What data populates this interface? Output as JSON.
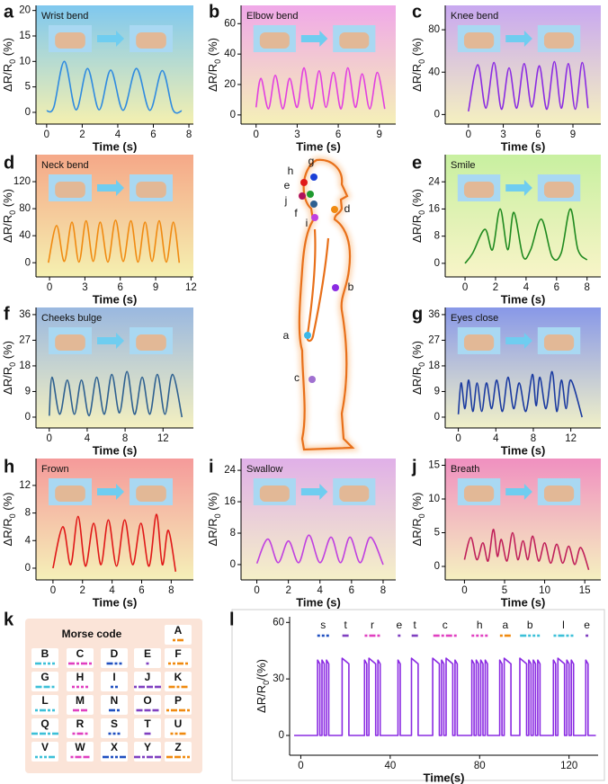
{
  "chart_data": [
    {
      "panel": "a",
      "type": "line",
      "title": "Wrist bend",
      "x_label": "Time (s)",
      "y_label": [
        "ΔR/R",
        "0",
        " (%)"
      ],
      "color": "#2f8be0",
      "background": [
        "#7fc8ef",
        "#f4f0b0"
      ],
      "xlim": [
        -0.6,
        8.25
      ],
      "ylim": [
        -2.3,
        21
      ],
      "xticks": [
        0,
        2,
        4,
        6,
        8
      ],
      "yticks": [
        0,
        5,
        10,
        15,
        20
      ],
      "x": [
        0,
        0.4,
        1.0,
        1.65,
        2.3,
        2.95,
        3.6,
        4.3,
        5.05,
        5.8,
        6.5,
        7.1,
        7.6
      ],
      "values": [
        0.3,
        1,
        10,
        0.5,
        8.6,
        0.5,
        8.3,
        0.4,
        8.6,
        0.4,
        8.2,
        0.5,
        0.3
      ]
    },
    {
      "panel": "b",
      "type": "line",
      "title": "Elbow bend",
      "x_label": "Time (s)",
      "y_label": [
        "ΔR/R",
        "0",
        " (%)"
      ],
      "color": "#e23fe0",
      "background": [
        "#f0a8e8",
        "#f5f0b8"
      ],
      "xlim": [
        -1.1,
        10.2
      ],
      "ylim": [
        -6,
        72
      ],
      "xticks": [
        0,
        3,
        6,
        9
      ],
      "yticks": [
        0,
        20,
        40,
        60
      ],
      "x": [
        0,
        0.35,
        0.9,
        1.4,
        1.95,
        2.45,
        3.0,
        3.5,
        4.05,
        4.6,
        5.1,
        5.65,
        6.2,
        6.7,
        7.25,
        7.75,
        8.3,
        8.85,
        9.4
      ],
      "values": [
        5,
        24,
        4,
        26,
        4,
        24,
        5,
        31,
        4,
        29,
        5,
        28,
        4,
        31,
        5,
        27,
        4,
        28,
        4
      ]
    },
    {
      "panel": "c",
      "type": "line",
      "title": "Knee bend",
      "x_label": "Time (s)",
      "y_label": [
        "ΔR/R",
        "0",
        " (%)"
      ],
      "color": "#8a2be2",
      "background": [
        "#c8a8f0",
        "#f5f0c0"
      ],
      "xlim": [
        -2,
        11.4
      ],
      "ylim": [
        -9,
        103
      ],
      "xticks": [
        0,
        3,
        6,
        9
      ],
      "yticks": [
        0,
        40,
        80
      ],
      "x": [
        0,
        0.8,
        1.5,
        2.2,
        2.85,
        3.5,
        4.15,
        4.8,
        5.45,
        6.1,
        6.75,
        7.4,
        8.0,
        8.6,
        9.2,
        9.8,
        10.3
      ],
      "values": [
        3,
        47,
        6,
        49,
        5,
        44,
        6,
        48,
        7,
        46,
        5,
        50,
        6,
        48,
        5,
        49,
        6
      ]
    },
    {
      "panel": "d",
      "type": "line",
      "title": "Neck bend",
      "x_label": "Time (s)",
      "y_label": [
        "ΔR/R",
        "0",
        " (%)"
      ],
      "color": "#f08a10",
      "background": [
        "#f5a888",
        "#f5f0b0"
      ],
      "xlim": [
        -1.15,
        12.2
      ],
      "ylim": [
        -21,
        160
      ],
      "xticks": [
        0,
        3,
        6,
        9,
        12
      ],
      "yticks": [
        0,
        40,
        80,
        120
      ],
      "x": [
        -0.1,
        0.6,
        1.25,
        1.9,
        2.5,
        3.1,
        3.7,
        4.3,
        4.95,
        5.6,
        6.25,
        6.9,
        7.5,
        8.1,
        8.7,
        9.3,
        9.9,
        10.5,
        11.0
      ],
      "values": [
        0,
        55,
        2,
        60,
        1,
        62,
        2,
        60,
        1,
        63,
        2,
        62,
        1,
        60,
        2,
        62,
        1,
        60,
        0
      ]
    },
    {
      "panel": "e",
      "type": "line",
      "title": "Smile",
      "x_label": "Time (s)",
      "y_label": [
        "ΔR/R",
        "0",
        " (%)"
      ],
      "color": "#1f8a1f",
      "background": [
        "#c8f0a0",
        "#f8f4c8"
      ],
      "xlim": [
        -1.3,
        8.9
      ],
      "ylim": [
        -4,
        32
      ],
      "xticks": [
        0,
        2,
        4,
        6,
        8
      ],
      "yticks": [
        0,
        8,
        16,
        24
      ],
      "x": [
        0,
        0.5,
        1.3,
        1.8,
        2.3,
        2.8,
        3.2,
        3.8,
        4.3,
        5.0,
        5.7,
        6.3,
        6.9,
        7.4,
        8.0
      ],
      "values": [
        0,
        3,
        10,
        4,
        16,
        4,
        15,
        2,
        4,
        13,
        2,
        3,
        16,
        4,
        1
      ]
    },
    {
      "panel": "f",
      "type": "line",
      "title": "Cheeks bulge",
      "x_label": "Time (s)",
      "y_label": [
        "ΔR/R",
        "0",
        " (%)"
      ],
      "color": "#2e6090",
      "background": [
        "#9ab8e0",
        "#f4f0c0"
      ],
      "xlim": [
        -1.4,
        15.2
      ],
      "ylim": [
        -3.8,
        38.5
      ],
      "xticks": [
        0,
        4,
        8,
        12
      ],
      "yticks": [
        0,
        9,
        18,
        27,
        36
      ],
      "x": [
        0,
        0.3,
        1.1,
        1.9,
        2.65,
        3.4,
        4.2,
        5.0,
        5.8,
        6.6,
        7.4,
        8.2,
        9.0,
        9.8,
        10.6,
        11.4,
        12.2,
        13.0,
        14.0
      ],
      "values": [
        0.5,
        14,
        1,
        13,
        1,
        13,
        0.5,
        14,
        1,
        15,
        1.5,
        16,
        1,
        14,
        1,
        15,
        1,
        15,
        0
      ]
    },
    {
      "panel": "g",
      "type": "line",
      "title": "Eyes close",
      "x_label": "Time (s)",
      "y_label": [
        "ΔR/R",
        "0",
        " (%)"
      ],
      "color": "#1a3aa0",
      "background": [
        "#8898e8",
        "#f0f0c8"
      ],
      "xlim": [
        -1.4,
        15.2
      ],
      "ylim": [
        -3.8,
        38.5
      ],
      "xticks": [
        0,
        4,
        8,
        12
      ],
      "yticks": [
        0,
        9,
        18,
        27,
        36
      ],
      "x": [
        0,
        0.3,
        0.7,
        1.1,
        1.55,
        2.0,
        2.5,
        3.0,
        3.55,
        4.1,
        4.7,
        5.3,
        5.9,
        6.5,
        7.2,
        7.9,
        8.3,
        8.7,
        9.35,
        10.0,
        10.5,
        11.0,
        11.5,
        12.0,
        13.2
      ],
      "values": [
        1,
        12,
        3,
        13,
        2,
        12,
        2,
        12,
        3,
        13,
        2,
        14,
        3,
        12,
        2,
        15,
        4,
        14,
        3,
        16,
        2,
        13,
        3,
        13,
        0
      ]
    },
    {
      "panel": "h",
      "type": "line",
      "title": "Frown",
      "x_label": "Time (s)",
      "y_label": [
        "ΔR/R",
        "0",
        " (%)"
      ],
      "color": "#e01818",
      "background": [
        "#f59a9a",
        "#f5f0b8"
      ],
      "xlim": [
        -1.15,
        9.5
      ],
      "ylim": [
        -1.7,
        15.9
      ],
      "xticks": [
        0,
        2,
        4,
        6,
        8
      ],
      "yticks": [
        0,
        4,
        8,
        12
      ],
      "x": [
        0,
        0.67,
        1.2,
        1.7,
        2.2,
        2.75,
        3.25,
        3.75,
        4.3,
        4.85,
        5.4,
        5.95,
        6.5,
        7.0,
        7.4,
        7.8,
        8.3
      ],
      "values": [
        0,
        6,
        0.5,
        7.5,
        0.3,
        6.5,
        0.5,
        7,
        0.3,
        7,
        0.5,
        6.5,
        0.3,
        7.8,
        0.5,
        5.5,
        -0.5
      ]
    },
    {
      "panel": "i",
      "type": "line",
      "title": "Swallow",
      "x_label": "Time (s)",
      "y_label": [
        "ΔR/R",
        "0",
        " (%)"
      ],
      "color": "#c040e0",
      "background": [
        "#e0b0e8",
        "#f5f0c8"
      ],
      "xlim": [
        -1,
        8.8
      ],
      "ylim": [
        -3.9,
        27
      ],
      "xticks": [
        0,
        2,
        4,
        6,
        8
      ],
      "yticks": [
        0,
        8,
        16,
        24
      ],
      "x": [
        0,
        0.7,
        1.35,
        2.0,
        2.65,
        3.3,
        4.0,
        4.7,
        5.3,
        5.9,
        6.55,
        7.2,
        8.0
      ],
      "values": [
        0.3,
        6.5,
        0.5,
        6,
        0.5,
        7.5,
        0.5,
        7,
        0.5,
        7,
        0.5,
        7,
        0
      ]
    },
    {
      "panel": "j",
      "type": "line",
      "title": "Breath",
      "x_label": "Time (s)",
      "y_label": [
        "ΔR/R",
        "0",
        " (%)"
      ],
      "color": "#c0205a",
      "background": [
        "#f090c0",
        "#f5f0c0"
      ],
      "xlim": [
        -2.4,
        17
      ],
      "ylim": [
        -2,
        16
      ],
      "xticks": [
        0,
        5,
        10,
        15
      ],
      "yticks": [
        0,
        5,
        10,
        15
      ],
      "x": [
        0,
        0.8,
        1.55,
        2.3,
        2.95,
        3.6,
        4.1,
        4.6,
        5.3,
        6.0,
        6.65,
        7.3,
        7.9,
        8.5,
        9.25,
        10.0,
        10.75,
        11.5,
        12.25,
        13.0,
        13.75,
        14.5,
        15.5
      ],
      "values": [
        1,
        4.3,
        1,
        3.5,
        0.8,
        5.5,
        1.5,
        4,
        0.8,
        5,
        1,
        3.8,
        1,
        4.5,
        0.8,
        3.5,
        0.5,
        3.3,
        0.5,
        3,
        0.3,
        2.8,
        -0.5
      ]
    },
    {
      "panel": "l",
      "type": "line",
      "x_label": "Time(s)",
      "y_label": [
        "ΔR/R",
        "0",
        "/(%)"
      ],
      "color": "#8a2be2",
      "xlim": [
        -5,
        133
      ],
      "ylim": [
        -10.5,
        63
      ],
      "xticks": [
        0,
        40,
        80,
        120
      ],
      "yticks": [
        0,
        30,
        60
      ],
      "letters": [
        {
          "label": "s",
          "code": "...",
          "color": "#2050c0",
          "x": 10
        },
        {
          "label": "t",
          "code": "-",
          "color": "#8040c0",
          "x": 20
        },
        {
          "label": "r",
          "code": ".-.",
          "color": "#e040c0",
          "x": 32
        },
        {
          "label": "e",
          "code": ".",
          "color": "#8040c0",
          "x": 44
        },
        {
          "label": "t",
          "code": "-",
          "color": "#8040c0",
          "x": 51
        },
        {
          "label": "c",
          "code": "-.-.",
          "color": "#e040c0",
          "x": 64.5
        },
        {
          "label": "h",
          "code": "....",
          "color": "#e040c0",
          "x": 80
        },
        {
          "label": "a",
          "code": ".-",
          "color": "#f08a10",
          "x": 91.5
        },
        {
          "label": "b",
          "code": "-...",
          "color": "#3cc0d8",
          "x": 102.5
        },
        {
          "label": "l",
          "code": ".-..",
          "color": "#3cc0d8",
          "x": 117.5
        },
        {
          "label": "e",
          "code": ".",
          "color": "#8040c0",
          "x": 128
        }
      ],
      "x": [
        -3,
        7.5,
        7.5,
        8.5,
        8.5,
        9.5,
        9.5,
        10.5,
        10.5,
        11.5,
        11.5,
        12.5,
        12.5,
        18.5,
        18.5,
        21.5,
        21.5,
        28.5,
        28.5,
        29.5,
        29.5,
        30.5,
        30.5,
        33.5,
        33.5,
        34.5,
        34.5,
        35.5,
        35.5,
        43.5,
        43.5,
        44.5,
        44.5,
        49.5,
        49.5,
        52.5,
        52.5,
        59,
        59,
        62,
        62,
        63,
        63,
        64,
        64,
        65,
        65,
        68,
        68,
        69,
        69,
        70,
        70,
        76.5,
        76.5,
        77.5,
        77.5,
        78.5,
        78.5,
        79.5,
        79.5,
        80.5,
        80.5,
        81.5,
        81.5,
        82.5,
        82.5,
        83.5,
        83.5,
        89,
        89,
        90,
        90,
        91,
        91,
        94,
        94,
        98,
        98,
        101,
        101,
        102,
        102,
        103,
        103,
        104,
        104,
        105,
        105,
        106,
        106,
        107,
        107,
        113,
        113,
        114,
        114,
        115,
        115,
        118,
        118,
        119,
        119,
        120,
        120,
        121,
        121,
        122,
        122,
        127.5,
        127.5,
        128.5,
        128.5,
        132
      ],
      "values": [
        0,
        0,
        40,
        38,
        0,
        0,
        40,
        38,
        0,
        0,
        40,
        38,
        0,
        0,
        41,
        38,
        0,
        0,
        40,
        38,
        0,
        0,
        41,
        38,
        0,
        0,
        40,
        38,
        0,
        0,
        40,
        38,
        0,
        0,
        41,
        38,
        0,
        0,
        41,
        38,
        0,
        0,
        40,
        38,
        0,
        0,
        41,
        38,
        0,
        0,
        40,
        38,
        0,
        0,
        40,
        38,
        0,
        0,
        40,
        38,
        0,
        0,
        40,
        38,
        0,
        0,
        40,
        38,
        0,
        0,
        40,
        38,
        0,
        0,
        41,
        38,
        0,
        0,
        41,
        38,
        0,
        0,
        40,
        38,
        0,
        0,
        40,
        38,
        0,
        0,
        40,
        38,
        0,
        0,
        40,
        38,
        0,
        0,
        41,
        38,
        0,
        0,
        40,
        38,
        0,
        0,
        40,
        38,
        0,
        0,
        40,
        38,
        0,
        0
      ]
    }
  ],
  "body_map": {
    "points": [
      {
        "label": "g",
        "color": "#1a3fd6"
      },
      {
        "label": "h",
        "color": "#e01818"
      },
      {
        "label": "e",
        "color": "#1f9a2f"
      },
      {
        "label": "j",
        "color": "#b0105a"
      },
      {
        "label": "f",
        "color": "#2e6090"
      },
      {
        "label": "i",
        "color": "#c040e0"
      },
      {
        "label": "d",
        "color": "#f08a10"
      },
      {
        "label": "b",
        "color": "#8a2be2"
      },
      {
        "label": "a",
        "color": "#3cb8e8"
      },
      {
        "label": "c",
        "color": "#a070d0"
      }
    ]
  },
  "morse_table": {
    "panel": "k",
    "title": "Morse code",
    "letters": [
      {
        "letter": "A",
        "code": ".-",
        "color": "#f08a10"
      },
      {
        "letter": "B",
        "code": "-...",
        "color": "#3cc0d8"
      },
      {
        "letter": "C",
        "code": "-.-.",
        "color": "#e040c0"
      },
      {
        "letter": "D",
        "code": "-..",
        "color": "#2050c0"
      },
      {
        "letter": "E",
        "code": ".",
        "color": "#8040c0"
      },
      {
        "letter": "F",
        "code": "..-.",
        "color": "#f08a10"
      },
      {
        "letter": "G",
        "code": "--.",
        "color": "#3cc0d8"
      },
      {
        "letter": "H",
        "code": "....",
        "color": "#e040c0"
      },
      {
        "letter": "I",
        "code": "..",
        "color": "#2050c0"
      },
      {
        "letter": "J",
        "code": ".---",
        "color": "#8040c0"
      },
      {
        "letter": "K",
        "code": "-.-",
        "color": "#f08a10"
      },
      {
        "letter": "L",
        "code": ".-..",
        "color": "#3cc0d8"
      },
      {
        "letter": "M",
        "code": "--",
        "color": "#e040c0"
      },
      {
        "letter": "N",
        "code": "-.",
        "color": "#2050c0"
      },
      {
        "letter": "O",
        "code": "---",
        "color": "#8040c0"
      },
      {
        "letter": "P",
        "code": ".--.",
        "color": "#f08a10"
      },
      {
        "letter": "Q",
        "code": "--.-",
        "color": "#3cc0d8"
      },
      {
        "letter": "R",
        "code": ".-.",
        "color": "#e040c0"
      },
      {
        "letter": "S",
        "code": "...",
        "color": "#2050c0"
      },
      {
        "letter": "T",
        "code": "-",
        "color": "#8040c0"
      },
      {
        "letter": "U",
        "code": "..-",
        "color": "#f08a10"
      },
      {
        "letter": "V",
        "code": "...-",
        "color": "#3cc0d8"
      },
      {
        "letter": "W",
        "code": ".--",
        "color": "#e040c0"
      },
      {
        "letter": "X",
        "code": "-..-",
        "color": "#2050c0"
      },
      {
        "letter": "Y",
        "code": "-.--",
        "color": "#8040c0"
      },
      {
        "letter": "Z",
        "code": "--..",
        "color": "#f08a10"
      }
    ]
  }
}
